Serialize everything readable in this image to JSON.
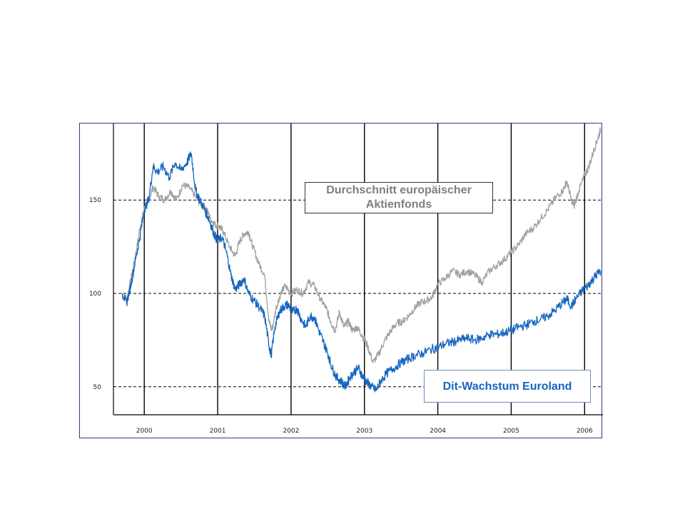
{
  "chart_data": {
    "type": "line",
    "title": "",
    "xlabel": "",
    "ylabel": "",
    "x_ticks": [
      "2000",
      "2001",
      "2002",
      "2003",
      "2004",
      "2005",
      "2006"
    ],
    "y_ticks": [
      50,
      100,
      150
    ],
    "xlim": [
      1999.58,
      2006.25
    ],
    "ylim": [
      35,
      191
    ],
    "grid": "dashed horizontal at 50/100/150, solid vertical at year starts",
    "series": [
      {
        "name": "Durchschnitt europäischer Aktienfonds",
        "color": "#a0a0a0",
        "points": [
          [
            1999.7,
            100
          ],
          [
            1999.76,
            96
          ],
          [
            1999.82,
            108
          ],
          [
            1999.88,
            120
          ],
          [
            1999.94,
            135
          ],
          [
            2000.0,
            145
          ],
          [
            2000.06,
            150
          ],
          [
            2000.12,
            157
          ],
          [
            2000.2,
            152
          ],
          [
            2000.28,
            150
          ],
          [
            2000.36,
            155
          ],
          [
            2000.44,
            150
          ],
          [
            2000.52,
            158
          ],
          [
            2000.6,
            157
          ],
          [
            2000.68,
            153
          ],
          [
            2000.76,
            148
          ],
          [
            2000.84,
            146
          ],
          [
            2000.9,
            140
          ],
          [
            2000.96,
            137
          ],
          [
            2001.02,
            136
          ],
          [
            2001.08,
            133
          ],
          [
            2001.16,
            125
          ],
          [
            2001.24,
            120
          ],
          [
            2001.3,
            128
          ],
          [
            2001.36,
            132
          ],
          [
            2001.42,
            133
          ],
          [
            2001.48,
            125
          ],
          [
            2001.56,
            116
          ],
          [
            2001.64,
            110
          ],
          [
            2001.7,
            85
          ],
          [
            2001.74,
            80
          ],
          [
            2001.8,
            93
          ],
          [
            2001.86,
            100
          ],
          [
            2001.92,
            104
          ],
          [
            2002.0,
            100
          ],
          [
            2002.08,
            102
          ],
          [
            2002.16,
            100
          ],
          [
            2002.24,
            106
          ],
          [
            2002.32,
            104
          ],
          [
            2002.4,
            97
          ],
          [
            2002.48,
            92
          ],
          [
            2002.54,
            85
          ],
          [
            2002.6,
            80
          ],
          [
            2002.66,
            90
          ],
          [
            2002.72,
            82
          ],
          [
            2002.78,
            85
          ],
          [
            2002.84,
            80
          ],
          [
            2002.9,
            82
          ],
          [
            2002.96,
            78
          ],
          [
            2003.04,
            72
          ],
          [
            2003.12,
            63
          ],
          [
            2003.2,
            68
          ],
          [
            2003.28,
            75
          ],
          [
            2003.36,
            80
          ],
          [
            2003.44,
            84
          ],
          [
            2003.52,
            85
          ],
          [
            2003.6,
            88
          ],
          [
            2003.68,
            92
          ],
          [
            2003.76,
            95
          ],
          [
            2003.84,
            96
          ],
          [
            2003.92,
            98
          ],
          [
            2004.0,
            105
          ],
          [
            2004.1,
            108
          ],
          [
            2004.2,
            112
          ],
          [
            2004.3,
            110
          ],
          [
            2004.4,
            112
          ],
          [
            2004.5,
            110
          ],
          [
            2004.6,
            106
          ],
          [
            2004.7,
            112
          ],
          [
            2004.8,
            115
          ],
          [
            2004.9,
            118
          ],
          [
            2005.0,
            122
          ],
          [
            2005.1,
            126
          ],
          [
            2005.2,
            132
          ],
          [
            2005.3,
            135
          ],
          [
            2005.4,
            140
          ],
          [
            2005.5,
            145
          ],
          [
            2005.6,
            151
          ],
          [
            2005.7,
            155
          ],
          [
            2005.76,
            160
          ],
          [
            2005.82,
            150
          ],
          [
            2005.86,
            147
          ],
          [
            2005.92,
            155
          ],
          [
            2006.0,
            163
          ],
          [
            2006.06,
            168
          ],
          [
            2006.12,
            176
          ],
          [
            2006.18,
            183
          ],
          [
            2006.22,
            188
          ]
        ]
      },
      {
        "name": "Dit-Wachstum Euroland",
        "color": "#1565c0",
        "points": [
          [
            1999.7,
            100
          ],
          [
            1999.76,
            95
          ],
          [
            1999.82,
            105
          ],
          [
            1999.88,
            118
          ],
          [
            1999.94,
            130
          ],
          [
            2000.0,
            145
          ],
          [
            2000.06,
            150
          ],
          [
            2000.12,
            168
          ],
          [
            2000.18,
            165
          ],
          [
            2000.26,
            168
          ],
          [
            2000.34,
            162
          ],
          [
            2000.42,
            170
          ],
          [
            2000.5,
            166
          ],
          [
            2000.58,
            170
          ],
          [
            2000.64,
            175
          ],
          [
            2000.7,
            155
          ],
          [
            2000.76,
            150
          ],
          [
            2000.82,
            145
          ],
          [
            2000.88,
            140
          ],
          [
            2000.94,
            133
          ],
          [
            2001.0,
            128
          ],
          [
            2001.06,
            130
          ],
          [
            2001.12,
            122
          ],
          [
            2001.18,
            110
          ],
          [
            2001.24,
            102
          ],
          [
            2001.3,
            105
          ],
          [
            2001.36,
            108
          ],
          [
            2001.42,
            100
          ],
          [
            2001.5,
            96
          ],
          [
            2001.58,
            92
          ],
          [
            2001.64,
            88
          ],
          [
            2001.7,
            72
          ],
          [
            2001.73,
            67
          ],
          [
            2001.78,
            82
          ],
          [
            2001.84,
            90
          ],
          [
            2001.9,
            93
          ],
          [
            2001.96,
            94
          ],
          [
            2002.02,
            90
          ],
          [
            2002.08,
            92
          ],
          [
            2002.14,
            86
          ],
          [
            2002.2,
            82
          ],
          [
            2002.26,
            88
          ],
          [
            2002.32,
            87
          ],
          [
            2002.38,
            80
          ],
          [
            2002.44,
            74
          ],
          [
            2002.5,
            68
          ],
          [
            2002.56,
            60
          ],
          [
            2002.62,
            55
          ],
          [
            2002.68,
            53
          ],
          [
            2002.74,
            50
          ],
          [
            2002.8,
            55
          ],
          [
            2002.86,
            58
          ],
          [
            2002.92,
            60
          ],
          [
            2002.98,
            55
          ],
          [
            2003.04,
            52
          ],
          [
            2003.1,
            50
          ],
          [
            2003.16,
            48
          ],
          [
            2003.22,
            53
          ],
          [
            2003.3,
            57
          ],
          [
            2003.4,
            60
          ],
          [
            2003.5,
            63
          ],
          [
            2003.6,
            65
          ],
          [
            2003.7,
            67
          ],
          [
            2003.8,
            68
          ],
          [
            2003.9,
            70
          ],
          [
            2004.0,
            71
          ],
          [
            2004.1,
            73
          ],
          [
            2004.2,
            74
          ],
          [
            2004.3,
            75
          ],
          [
            2004.4,
            76
          ],
          [
            2004.5,
            75
          ],
          [
            2004.6,
            76
          ],
          [
            2004.7,
            78
          ],
          [
            2004.8,
            78
          ],
          [
            2004.9,
            79
          ],
          [
            2005.0,
            80
          ],
          [
            2005.1,
            82
          ],
          [
            2005.2,
            83
          ],
          [
            2005.3,
            85
          ],
          [
            2005.4,
            86
          ],
          [
            2005.5,
            88
          ],
          [
            2005.6,
            91
          ],
          [
            2005.7,
            95
          ],
          [
            2005.76,
            97
          ],
          [
            2005.82,
            93
          ],
          [
            2005.88,
            97
          ],
          [
            2005.96,
            101
          ],
          [
            2006.04,
            104
          ],
          [
            2006.1,
            107
          ],
          [
            2006.16,
            110
          ],
          [
            2006.22,
            112
          ]
        ]
      }
    ]
  },
  "labels": {
    "grey_line_1": "Durchschnitt europäischer",
    "grey_line_2": "Aktienfonds",
    "blue": "Dit-Wachstum Euroland"
  }
}
